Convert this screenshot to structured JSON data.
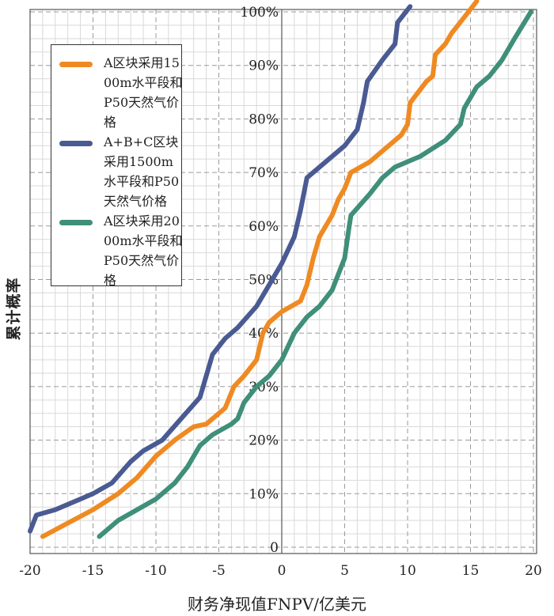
{
  "chart_data": {
    "type": "line",
    "title": "",
    "xlabel": "财务净现值FNPV/亿美元",
    "ylabel": "累计概率",
    "xlim": [
      -20,
      20
    ],
    "ylim": [
      0,
      100
    ],
    "x_ticks": [
      "-20",
      "-15",
      "-10",
      "-5",
      "0",
      "5",
      "10",
      "15",
      "20"
    ],
    "x_tick_values": [
      -20,
      -15,
      -10,
      -5,
      0,
      5,
      10,
      15,
      20
    ],
    "y_ticks": [
      "0",
      "10%",
      "20%",
      "30%",
      "40%",
      "50%",
      "60%",
      "70%",
      "80%",
      "90%",
      "100%"
    ],
    "y_tick_values": [
      0,
      10,
      20,
      30,
      40,
      50,
      60,
      70,
      80,
      90,
      100
    ],
    "grid": true,
    "legend_position": "top-left",
    "series": [
      {
        "name": "A区块采用1500m水平段和P50天然气价格",
        "color": "#ef8a22",
        "points": [
          [
            -19,
            2
          ],
          [
            -17,
            4.5
          ],
          [
            -15,
            7
          ],
          [
            -13,
            10
          ],
          [
            -11.5,
            13
          ],
          [
            -10,
            17
          ],
          [
            -8.5,
            20
          ],
          [
            -7,
            22.5
          ],
          [
            -6,
            23
          ],
          [
            -4.5,
            26
          ],
          [
            -3.8,
            30
          ],
          [
            -3,
            32
          ],
          [
            -2,
            35
          ],
          [
            -1.5,
            40
          ],
          [
            -1,
            42
          ],
          [
            0,
            44
          ],
          [
            1.5,
            46
          ],
          [
            2,
            49
          ],
          [
            2.5,
            54
          ],
          [
            3,
            58
          ],
          [
            4,
            62
          ],
          [
            4.5,
            65
          ],
          [
            5,
            67
          ],
          [
            5.5,
            70
          ],
          [
            7,
            72
          ],
          [
            8,
            74
          ],
          [
            9.5,
            77
          ],
          [
            10,
            79
          ],
          [
            10.2,
            83
          ],
          [
            11.5,
            87
          ],
          [
            12,
            88
          ],
          [
            12.2,
            92
          ],
          [
            13,
            94
          ],
          [
            13.5,
            96
          ],
          [
            14.5,
            99
          ],
          [
            15.5,
            102
          ]
        ]
      },
      {
        "name": "A+B+C区块采用1500m水平段和P50天然气价格",
        "color": "#4a5a93",
        "points": [
          [
            -20,
            3
          ],
          [
            -19.5,
            6
          ],
          [
            -18,
            7
          ],
          [
            -16,
            9
          ],
          [
            -15,
            10
          ],
          [
            -13.5,
            12
          ],
          [
            -12,
            16
          ],
          [
            -11,
            18
          ],
          [
            -9.5,
            20
          ],
          [
            -8,
            24
          ],
          [
            -6.5,
            28
          ],
          [
            -6,
            32
          ],
          [
            -5.5,
            36
          ],
          [
            -4.5,
            39
          ],
          [
            -3.5,
            41
          ],
          [
            -2,
            45
          ],
          [
            -1,
            49
          ],
          [
            0,
            53
          ],
          [
            1,
            58
          ],
          [
            1.5,
            63
          ],
          [
            2,
            69
          ],
          [
            3,
            71
          ],
          [
            4,
            73
          ],
          [
            5,
            75
          ],
          [
            6,
            78
          ],
          [
            6.5,
            83
          ],
          [
            6.8,
            87
          ],
          [
            8,
            91
          ],
          [
            9,
            94
          ],
          [
            9.2,
            98
          ],
          [
            10.2,
            101
          ]
        ]
      },
      {
        "name": "A区块采用2000m水平段和P50天然气价格",
        "color": "#3f8f7a",
        "points": [
          [
            -14.5,
            2
          ],
          [
            -13,
            5
          ],
          [
            -11.5,
            7
          ],
          [
            -10,
            9
          ],
          [
            -8.5,
            12
          ],
          [
            -7.5,
            15
          ],
          [
            -6.5,
            19
          ],
          [
            -5.5,
            21
          ],
          [
            -4,
            23
          ],
          [
            -3.5,
            24
          ],
          [
            -3,
            27
          ],
          [
            -2,
            30
          ],
          [
            -1,
            32
          ],
          [
            0,
            35
          ],
          [
            1,
            40
          ],
          [
            2,
            43
          ],
          [
            3,
            45
          ],
          [
            4,
            48
          ],
          [
            5,
            54
          ],
          [
            5.3,
            59
          ],
          [
            5.5,
            62
          ],
          [
            7,
            66
          ],
          [
            8,
            69
          ],
          [
            9,
            71
          ],
          [
            11,
            73
          ],
          [
            13,
            76
          ],
          [
            14.2,
            79
          ],
          [
            14.5,
            82
          ],
          [
            15.5,
            86
          ],
          [
            16.5,
            88
          ],
          [
            17.5,
            91
          ],
          [
            18.5,
            95
          ],
          [
            19.8,
            100
          ]
        ]
      }
    ]
  },
  "legend": {
    "items": [
      {
        "label": "A区块采用1500m水平段和P50天然气价格",
        "color": "#ef8a22"
      },
      {
        "label": "A+B+C区块采用1500m水平段和P50天然气价格",
        "color": "#4a5a93"
      },
      {
        "label": "A区块采用2000m水平段和P50天然气价格",
        "color": "#3f8f7a"
      }
    ]
  },
  "axes": {
    "x_title": "财务净现值FNPV/亿美元",
    "y_title": "累计概率"
  }
}
